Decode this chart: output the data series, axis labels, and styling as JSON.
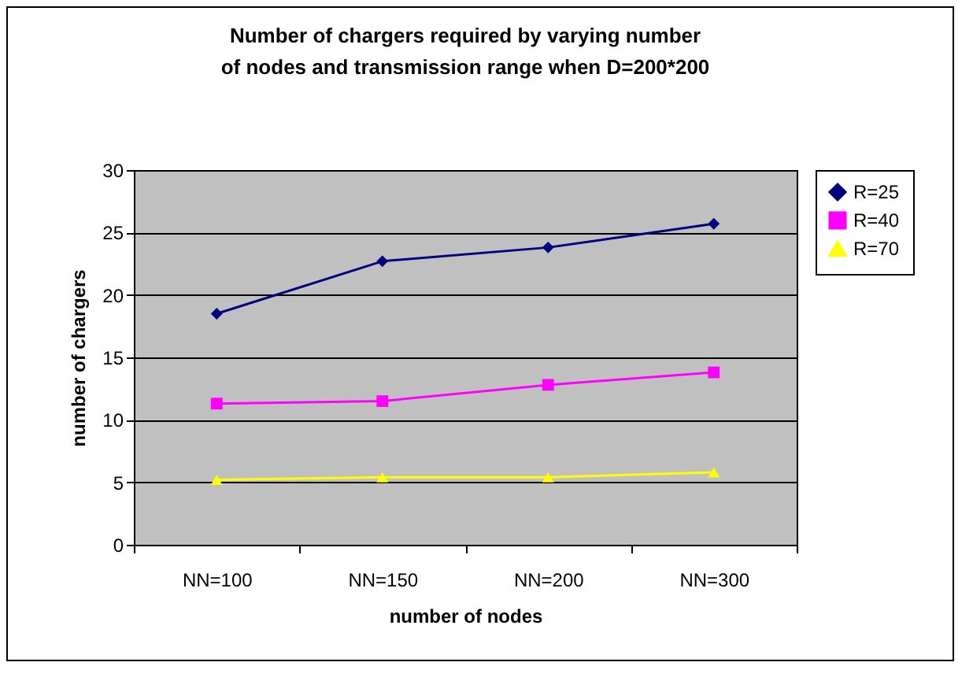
{
  "chart_data": {
    "type": "line",
    "title": "Number of chargers required by varying number of nodes and transmission range when D=200*200",
    "xlabel": "number of nodes",
    "ylabel": "number of chargers",
    "categories": [
      "NN=100",
      "NN=150",
      "NN=200",
      "NN=300"
    ],
    "series": [
      {
        "name": "R=25",
        "color": "#000080",
        "marker": "diamond",
        "values": [
          18.5,
          22.7,
          23.8,
          25.7
        ]
      },
      {
        "name": "R=40",
        "color": "#ff00ff",
        "marker": "square",
        "values": [
          11.3,
          11.5,
          12.8,
          13.8
        ]
      },
      {
        "name": "R=70",
        "color": "#ffff00",
        "marker": "triangle",
        "values": [
          5.2,
          5.4,
          5.4,
          5.8
        ]
      }
    ],
    "ylim": [
      0,
      30
    ],
    "yticks": [
      0,
      5,
      10,
      15,
      20,
      25,
      30
    ],
    "grid": "y",
    "legend": "right"
  }
}
